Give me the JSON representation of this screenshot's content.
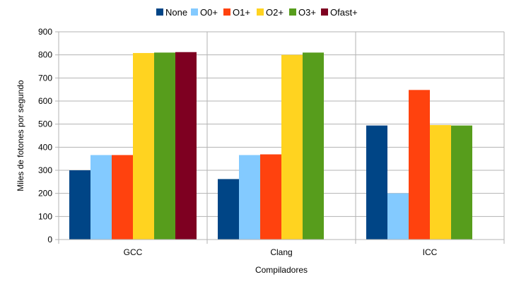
{
  "chart_data": {
    "type": "bar",
    "categories": [
      "GCC",
      "Clang",
      "ICC"
    ],
    "series": [
      {
        "name": "None",
        "color": "#004586",
        "values": [
          300,
          262,
          494
        ]
      },
      {
        "name": "O0+",
        "color": "#83caff",
        "values": [
          366,
          366,
          200
        ]
      },
      {
        "name": "O1+",
        "color": "#ff420e",
        "values": [
          366,
          369,
          648
        ]
      },
      {
        "name": "O2+",
        "color": "#ffd320",
        "values": [
          808,
          800,
          496
        ]
      },
      {
        "name": "O3+",
        "color": "#579d1c",
        "values": [
          810,
          810,
          494
        ]
      },
      {
        "name": "Ofast+",
        "color": "#7e0021",
        "values": [
          812,
          null,
          null
        ]
      }
    ],
    "xlabel": "Compiladores",
    "ylabel": "Miles de fotones por segundo",
    "ylim": [
      0,
      900
    ],
    "yticks": [
      0,
      100,
      200,
      300,
      400,
      500,
      600,
      700,
      800,
      900
    ],
    "grid": "horizontal",
    "legend": "top"
  }
}
